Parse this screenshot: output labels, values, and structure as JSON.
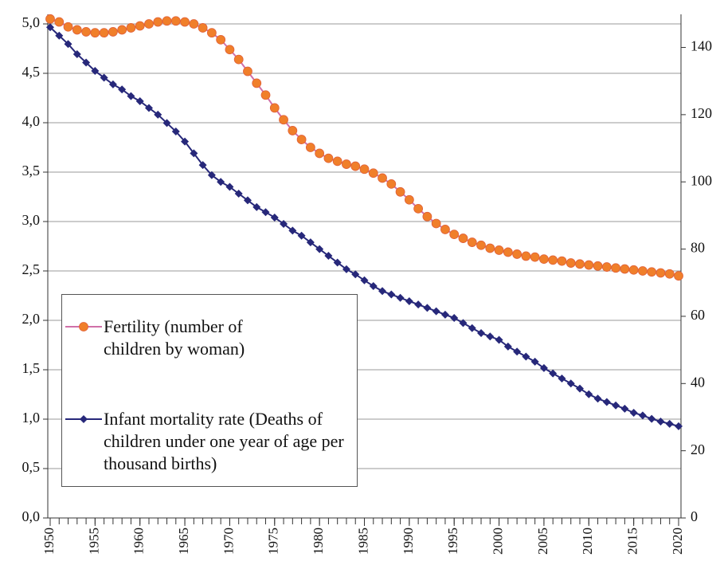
{
  "chart_data": {
    "type": "line",
    "x": [
      1950,
      1951,
      1952,
      1953,
      1954,
      1955,
      1956,
      1957,
      1958,
      1959,
      1960,
      1961,
      1962,
      1963,
      1964,
      1965,
      1966,
      1967,
      1968,
      1969,
      1970,
      1971,
      1972,
      1973,
      1974,
      1975,
      1976,
      1977,
      1978,
      1979,
      1980,
      1981,
      1982,
      1983,
      1984,
      1985,
      1986,
      1987,
      1988,
      1989,
      1990,
      1991,
      1992,
      1993,
      1994,
      1995,
      1996,
      1997,
      1998,
      1999,
      2000,
      2001,
      2002,
      2003,
      2004,
      2005,
      2006,
      2007,
      2008,
      2009,
      2010,
      2011,
      2012,
      2013,
      2014,
      2015,
      2016,
      2017,
      2018,
      2019,
      2020
    ],
    "xlim": [
      1950,
      2020
    ],
    "xticks": [
      1950,
      1955,
      1960,
      1965,
      1970,
      1975,
      1980,
      1985,
      1990,
      1995,
      2000,
      2005,
      2010,
      2015,
      2020
    ],
    "ylim": [
      0,
      5
    ],
    "yticks": [
      {
        "value": 0,
        "label": "0,0"
      },
      {
        "value": 0.5,
        "label": "0,5"
      },
      {
        "value": 1,
        "label": "1,0"
      },
      {
        "value": 1.5,
        "label": "1,5"
      },
      {
        "value": 2,
        "label": "2,0"
      },
      {
        "value": 2.5,
        "label": "2,5"
      },
      {
        "value": 3,
        "label": "3,0"
      },
      {
        "value": 3.5,
        "label": "3,5"
      },
      {
        "value": 4,
        "label": "4,0"
      },
      {
        "value": 4.5,
        "label": "4,5"
      },
      {
        "value": 5,
        "label": "5,0"
      }
    ],
    "y2lim": [
      0,
      147
    ],
    "y2ticks": [
      0,
      20,
      40,
      60,
      80,
      100,
      120,
      140
    ],
    "grid": true,
    "legend": "left",
    "series": [
      {
        "name": "Fertility  (number of children by woman)",
        "color": "#f07f2a",
        "line_color": "#d070a8",
        "values": [
          5.05,
          5.02,
          4.97,
          4.94,
          4.92,
          4.91,
          4.91,
          4.92,
          4.94,
          4.96,
          4.98,
          5.0,
          5.02,
          5.03,
          5.03,
          5.02,
          5.0,
          4.96,
          4.91,
          4.84,
          4.74,
          4.64,
          4.52,
          4.4,
          4.28,
          4.15,
          4.03,
          3.92,
          3.83,
          3.75,
          3.69,
          3.64,
          3.61,
          3.58,
          3.56,
          3.53,
          3.49,
          3.44,
          3.38,
          3.3,
          3.22,
          3.13,
          3.05,
          2.98,
          2.92,
          2.87,
          2.83,
          2.79,
          2.76,
          2.73,
          2.71,
          2.69,
          2.67,
          2.65,
          2.64,
          2.62,
          2.61,
          2.6,
          2.58,
          2.57,
          2.56,
          2.55,
          2.54,
          2.53,
          2.52,
          2.51,
          2.5,
          2.49,
          2.48,
          2.47,
          2.45
        ]
      },
      {
        "name": "Infant mortality rate (Deaths of children under one year of age per thousand births)",
        "color": "#27287a",
        "axis": "y2",
        "values": [
          146,
          143.5,
          141,
          138,
          135.5,
          133,
          131,
          129,
          127.5,
          125.5,
          124,
          122,
          120,
          117.5,
          115,
          112,
          108.5,
          105,
          102,
          100,
          98.5,
          96.5,
          94.5,
          92.5,
          91,
          89.4,
          87.5,
          85.5,
          84,
          82,
          80,
          78,
          76,
          74,
          72.5,
          70.7,
          69,
          67.5,
          66.5,
          65.5,
          64.5,
          63.5,
          62.5,
          61.5,
          60.5,
          59.5,
          58,
          56.5,
          55,
          54,
          53,
          51,
          49.5,
          48,
          46.5,
          44.6,
          43,
          41.5,
          40,
          38.5,
          36.8,
          35.5,
          34.5,
          33.5,
          32.5,
          31.3,
          30.5,
          29.5,
          28.7,
          28,
          27.3
        ]
      }
    ]
  }
}
